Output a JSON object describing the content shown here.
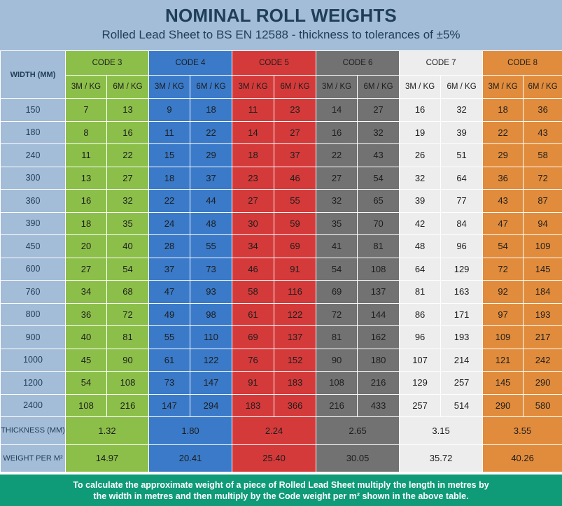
{
  "header": {
    "title": "NOMINAL ROLL WEIGHTS",
    "subtitle": "Rolled Lead Sheet to BS EN 12588 - thickness to tolerances of ±5%"
  },
  "colors": {
    "code3": "#8cbf4a",
    "code4": "#3a7ac8",
    "code5": "#d43a3a",
    "code6": "#727272",
    "code7": "#ededed",
    "code8": "#e18c3c",
    "header_bg": "#a3bcd7",
    "footer_bg": "#0f9a78"
  },
  "table": {
    "width_header": "WIDTH (MM)",
    "codes": [
      {
        "label": "CODE 3",
        "sub1": "3M / KG",
        "sub2": "6M / KG"
      },
      {
        "label": "CODE 4",
        "sub1": "3M / KG",
        "sub2": "6M / KG"
      },
      {
        "label": "CODE 5",
        "sub1": "3M / KG",
        "sub2": "6M / KG"
      },
      {
        "label": "CODE 6",
        "sub1": "3M / KG",
        "sub2": "6M / KG"
      },
      {
        "label": "CODE 7",
        "sub1": "3M / KG",
        "sub2": "6M / KG"
      },
      {
        "label": "CODE 8",
        "sub1": "3M / KG",
        "sub2": "6M / KG"
      }
    ],
    "rows": [
      {
        "width": "150",
        "values": [
          "7",
          "13",
          "9",
          "18",
          "11",
          "23",
          "14",
          "27",
          "16",
          "32",
          "18",
          "36"
        ]
      },
      {
        "width": "180",
        "values": [
          "8",
          "16",
          "11",
          "22",
          "14",
          "27",
          "16",
          "32",
          "19",
          "39",
          "22",
          "43"
        ]
      },
      {
        "width": "240",
        "values": [
          "11",
          "22",
          "15",
          "29",
          "18",
          "37",
          "22",
          "43",
          "26",
          "51",
          "29",
          "58"
        ]
      },
      {
        "width": "300",
        "values": [
          "13",
          "27",
          "18",
          "37",
          "23",
          "46",
          "27",
          "54",
          "32",
          "64",
          "36",
          "72"
        ]
      },
      {
        "width": "360",
        "values": [
          "16",
          "32",
          "22",
          "44",
          "27",
          "55",
          "32",
          "65",
          "39",
          "77",
          "43",
          "87"
        ]
      },
      {
        "width": "390",
        "values": [
          "18",
          "35",
          "24",
          "48",
          "30",
          "59",
          "35",
          "70",
          "42",
          "84",
          "47",
          "94"
        ]
      },
      {
        "width": "450",
        "values": [
          "20",
          "40",
          "28",
          "55",
          "34",
          "69",
          "41",
          "81",
          "48",
          "96",
          "54",
          "109"
        ]
      },
      {
        "width": "600",
        "values": [
          "27",
          "54",
          "37",
          "73",
          "46",
          "91",
          "54",
          "108",
          "64",
          "129",
          "72",
          "145"
        ]
      },
      {
        "width": "760",
        "values": [
          "34",
          "68",
          "47",
          "93",
          "58",
          "116",
          "69",
          "137",
          "81",
          "163",
          "92",
          "184"
        ]
      },
      {
        "width": "800",
        "values": [
          "36",
          "72",
          "49",
          "98",
          "61",
          "122",
          "72",
          "144",
          "86",
          "171",
          "97",
          "193"
        ]
      },
      {
        "width": "900",
        "values": [
          "40",
          "81",
          "55",
          "110",
          "69",
          "137",
          "81",
          "162",
          "96",
          "193",
          "109",
          "217"
        ]
      },
      {
        "width": "1000",
        "values": [
          "45",
          "90",
          "61",
          "122",
          "76",
          "152",
          "90",
          "180",
          "107",
          "214",
          "121",
          "242"
        ]
      },
      {
        "width": "1200",
        "values": [
          "54",
          "108",
          "73",
          "147",
          "91",
          "183",
          "108",
          "216",
          "129",
          "257",
          "145",
          "290"
        ]
      },
      {
        "width": "2400",
        "values": [
          "108",
          "216",
          "147",
          "294",
          "183",
          "366",
          "216",
          "433",
          "257",
          "514",
          "290",
          "580"
        ]
      }
    ],
    "thickness": {
      "label": "THICKNESS (MM)",
      "values": [
        "1.32",
        "1.80",
        "2.24",
        "2.65",
        "3.15",
        "3.55"
      ]
    },
    "weight": {
      "label": "WEIGHT PER M²",
      "values": [
        "14.97",
        "20.41",
        "25.40",
        "30.05",
        "35.72",
        "40.26"
      ]
    }
  },
  "footer": {
    "line1": "To calculate the approximate weight of a piece of Rolled Lead Sheet multiply the length in metres by",
    "line2": "the width in metres and then multiply by the Code weight per m² shown in the above table."
  }
}
